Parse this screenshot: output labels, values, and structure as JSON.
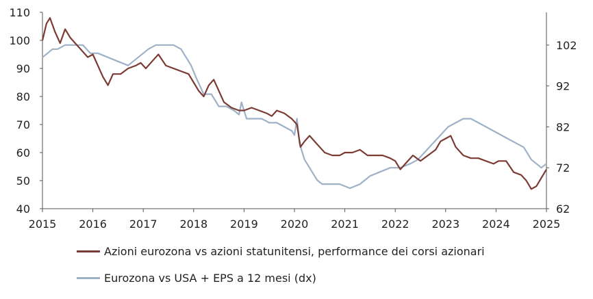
{
  "chart_data": {
    "type": "line",
    "x_ticks": [
      "2015",
      "2016",
      "2017",
      "2018",
      "2019",
      "2020",
      "2021",
      "2022",
      "2023",
      "2024",
      "2025"
    ],
    "y_left_ticks": [
      "40",
      "50",
      "60",
      "70",
      "80",
      "90",
      "100",
      "110"
    ],
    "y_right_ticks": [
      "62",
      "72",
      "82",
      "92",
      "102"
    ],
    "y_left_range": [
      40,
      110
    ],
    "y_right_range": [
      62,
      110
    ],
    "legend_position": "bottom",
    "series": [
      {
        "name": "Azioni eurozona vs azioni statunitensi, performance dei corsi azionari",
        "axis": "left",
        "color": "#7b3a32",
        "points": [
          [
            2015.0,
            100
          ],
          [
            2015.08,
            106
          ],
          [
            2015.15,
            108
          ],
          [
            2015.25,
            103
          ],
          [
            2015.35,
            99
          ],
          [
            2015.45,
            104
          ],
          [
            2015.55,
            101
          ],
          [
            2015.65,
            99
          ],
          [
            2015.75,
            97
          ],
          [
            2015.9,
            94
          ],
          [
            2016.0,
            95
          ],
          [
            2016.1,
            91
          ],
          [
            2016.2,
            87
          ],
          [
            2016.3,
            84
          ],
          [
            2016.4,
            88
          ],
          [
            2016.55,
            88
          ],
          [
            2016.7,
            90
          ],
          [
            2016.85,
            91
          ],
          [
            2016.95,
            92
          ],
          [
            2017.05,
            90
          ],
          [
            2017.2,
            93
          ],
          [
            2017.3,
            95
          ],
          [
            2017.45,
            91
          ],
          [
            2017.6,
            90
          ],
          [
            2017.75,
            89
          ],
          [
            2017.9,
            88
          ],
          [
            2018.0,
            85
          ],
          [
            2018.1,
            82
          ],
          [
            2018.2,
            80
          ],
          [
            2018.3,
            84
          ],
          [
            2018.4,
            86
          ],
          [
            2018.5,
            82
          ],
          [
            2018.6,
            78
          ],
          [
            2018.75,
            76
          ],
          [
            2018.9,
            75
          ],
          [
            2019.0,
            75
          ],
          [
            2019.15,
            76
          ],
          [
            2019.3,
            75
          ],
          [
            2019.45,
            74
          ],
          [
            2019.55,
            73
          ],
          [
            2019.65,
            75
          ],
          [
            2019.8,
            74
          ],
          [
            2019.95,
            72
          ],
          [
            2020.05,
            70
          ],
          [
            2020.12,
            62
          ],
          [
            2020.2,
            64
          ],
          [
            2020.3,
            66
          ],
          [
            2020.4,
            64
          ],
          [
            2020.5,
            62
          ],
          [
            2020.6,
            60
          ],
          [
            2020.75,
            59
          ],
          [
            2020.9,
            59
          ],
          [
            2021.0,
            60
          ],
          [
            2021.15,
            60
          ],
          [
            2021.3,
            61
          ],
          [
            2021.45,
            59
          ],
          [
            2021.6,
            59
          ],
          [
            2021.75,
            59
          ],
          [
            2021.9,
            58
          ],
          [
            2022.0,
            57
          ],
          [
            2022.1,
            54
          ],
          [
            2022.2,
            56
          ],
          [
            2022.35,
            59
          ],
          [
            2022.5,
            57
          ],
          [
            2022.65,
            59
          ],
          [
            2022.8,
            61
          ],
          [
            2022.9,
            64
          ],
          [
            2023.0,
            65
          ],
          [
            2023.1,
            66
          ],
          [
            2023.2,
            62
          ],
          [
            2023.35,
            59
          ],
          [
            2023.5,
            58
          ],
          [
            2023.65,
            58
          ],
          [
            2023.8,
            57
          ],
          [
            2023.95,
            56
          ],
          [
            2024.05,
            57
          ],
          [
            2024.2,
            57
          ],
          [
            2024.35,
            53
          ],
          [
            2024.5,
            52
          ],
          [
            2024.6,
            50
          ],
          [
            2024.7,
            47
          ],
          [
            2024.8,
            48
          ],
          [
            2024.9,
            51
          ],
          [
            2025.0,
            54
          ]
        ]
      },
      {
        "name": "Eurozona vs USA + EPS a 12 mesi (dx)",
        "axis": "right",
        "color": "#9eb1c6",
        "points": [
          [
            2015.0,
            99
          ],
          [
            2015.1,
            100
          ],
          [
            2015.2,
            101
          ],
          [
            2015.3,
            101
          ],
          [
            2015.45,
            102
          ],
          [
            2015.6,
            102
          ],
          [
            2015.8,
            102
          ],
          [
            2015.95,
            100
          ],
          [
            2016.1,
            100
          ],
          [
            2016.3,
            99
          ],
          [
            2016.5,
            98
          ],
          [
            2016.7,
            97
          ],
          [
            2016.9,
            99
          ],
          [
            2017.1,
            101
          ],
          [
            2017.25,
            102
          ],
          [
            2017.4,
            102
          ],
          [
            2017.6,
            102
          ],
          [
            2017.75,
            101
          ],
          [
            2017.85,
            99
          ],
          [
            2017.95,
            97
          ],
          [
            2018.05,
            94
          ],
          [
            2018.2,
            90
          ],
          [
            2018.35,
            90
          ],
          [
            2018.5,
            87
          ],
          [
            2018.65,
            87
          ],
          [
            2018.8,
            86
          ],
          [
            2018.9,
            85
          ],
          [
            2018.95,
            88
          ],
          [
            2019.05,
            84
          ],
          [
            2019.2,
            84
          ],
          [
            2019.35,
            84
          ],
          [
            2019.5,
            83
          ],
          [
            2019.65,
            83
          ],
          [
            2019.8,
            82
          ],
          [
            2019.95,
            81
          ],
          [
            2020.0,
            80
          ],
          [
            2020.05,
            84
          ],
          [
            2020.1,
            78
          ],
          [
            2020.2,
            74
          ],
          [
            2020.3,
            72
          ],
          [
            2020.4,
            70
          ],
          [
            2020.45,
            69
          ],
          [
            2020.55,
            68
          ],
          [
            2020.7,
            68
          ],
          [
            2020.9,
            68
          ],
          [
            2021.1,
            67
          ],
          [
            2021.3,
            68
          ],
          [
            2021.5,
            70
          ],
          [
            2021.7,
            71
          ],
          [
            2021.9,
            72
          ],
          [
            2022.1,
            72
          ],
          [
            2022.3,
            73
          ],
          [
            2022.45,
            74
          ],
          [
            2022.6,
            76
          ],
          [
            2022.75,
            78
          ],
          [
            2022.9,
            80
          ],
          [
            2023.05,
            82
          ],
          [
            2023.2,
            83
          ],
          [
            2023.35,
            84
          ],
          [
            2023.5,
            84
          ],
          [
            2023.65,
            83
          ],
          [
            2023.8,
            82
          ],
          [
            2023.95,
            81
          ],
          [
            2024.1,
            80
          ],
          [
            2024.25,
            79
          ],
          [
            2024.4,
            78
          ],
          [
            2024.55,
            77
          ],
          [
            2024.7,
            74
          ],
          [
            2024.8,
            73
          ],
          [
            2024.9,
            72
          ],
          [
            2025.0,
            73
          ]
        ]
      }
    ]
  }
}
